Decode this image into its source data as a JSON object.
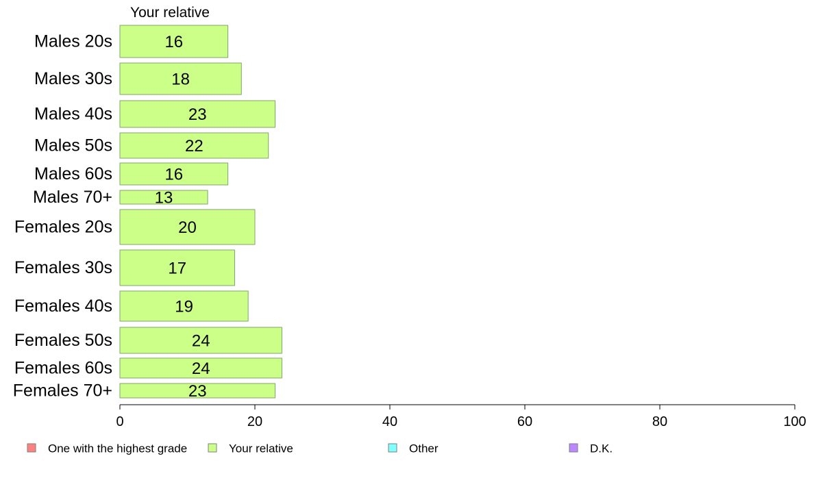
{
  "chart_data": {
    "type": "bar",
    "orientation": "horizontal",
    "stacked": true,
    "categories": [
      "Males 20s",
      "Males 30s",
      "Males 40s",
      "Males 50s",
      "Males 60s",
      "Males 70+",
      "Females 20s",
      "Females 30s",
      "Females 40s",
      "Females 50s",
      "Females 60s",
      "Females 70+"
    ],
    "series": [
      {
        "name": "One with the highest grade",
        "color": "#ff8080",
        "values": [
          0,
          0,
          0,
          0,
          0,
          0,
          0,
          0,
          0,
          0,
          0,
          0
        ]
      },
      {
        "name": "Your relative",
        "color": "#ccff88",
        "values": [
          16,
          18,
          23,
          22,
          16,
          13,
          20,
          17,
          19,
          24,
          24,
          23
        ]
      },
      {
        "name": "Other",
        "color": "#80ffff",
        "values": [
          0,
          0,
          0,
          0,
          0,
          0,
          0,
          0,
          0,
          0,
          0,
          0
        ]
      },
      {
        "name": "D.K.",
        "color": "#bb88ff",
        "values": [
          0,
          0,
          0,
          0,
          0,
          0,
          0,
          0,
          0,
          0,
          0,
          0
        ]
      }
    ],
    "data_labels": [
      "16",
      "18",
      "23",
      "22",
      "16",
      "13",
      "20",
      "17",
      "19",
      "24",
      "24",
      "23"
    ],
    "series_header": "Your relative",
    "xlim": [
      0,
      100
    ],
    "xticks": [
      "0",
      "20",
      "40",
      "60",
      "80",
      "100"
    ],
    "grid": false,
    "legend_position": "bottom"
  }
}
